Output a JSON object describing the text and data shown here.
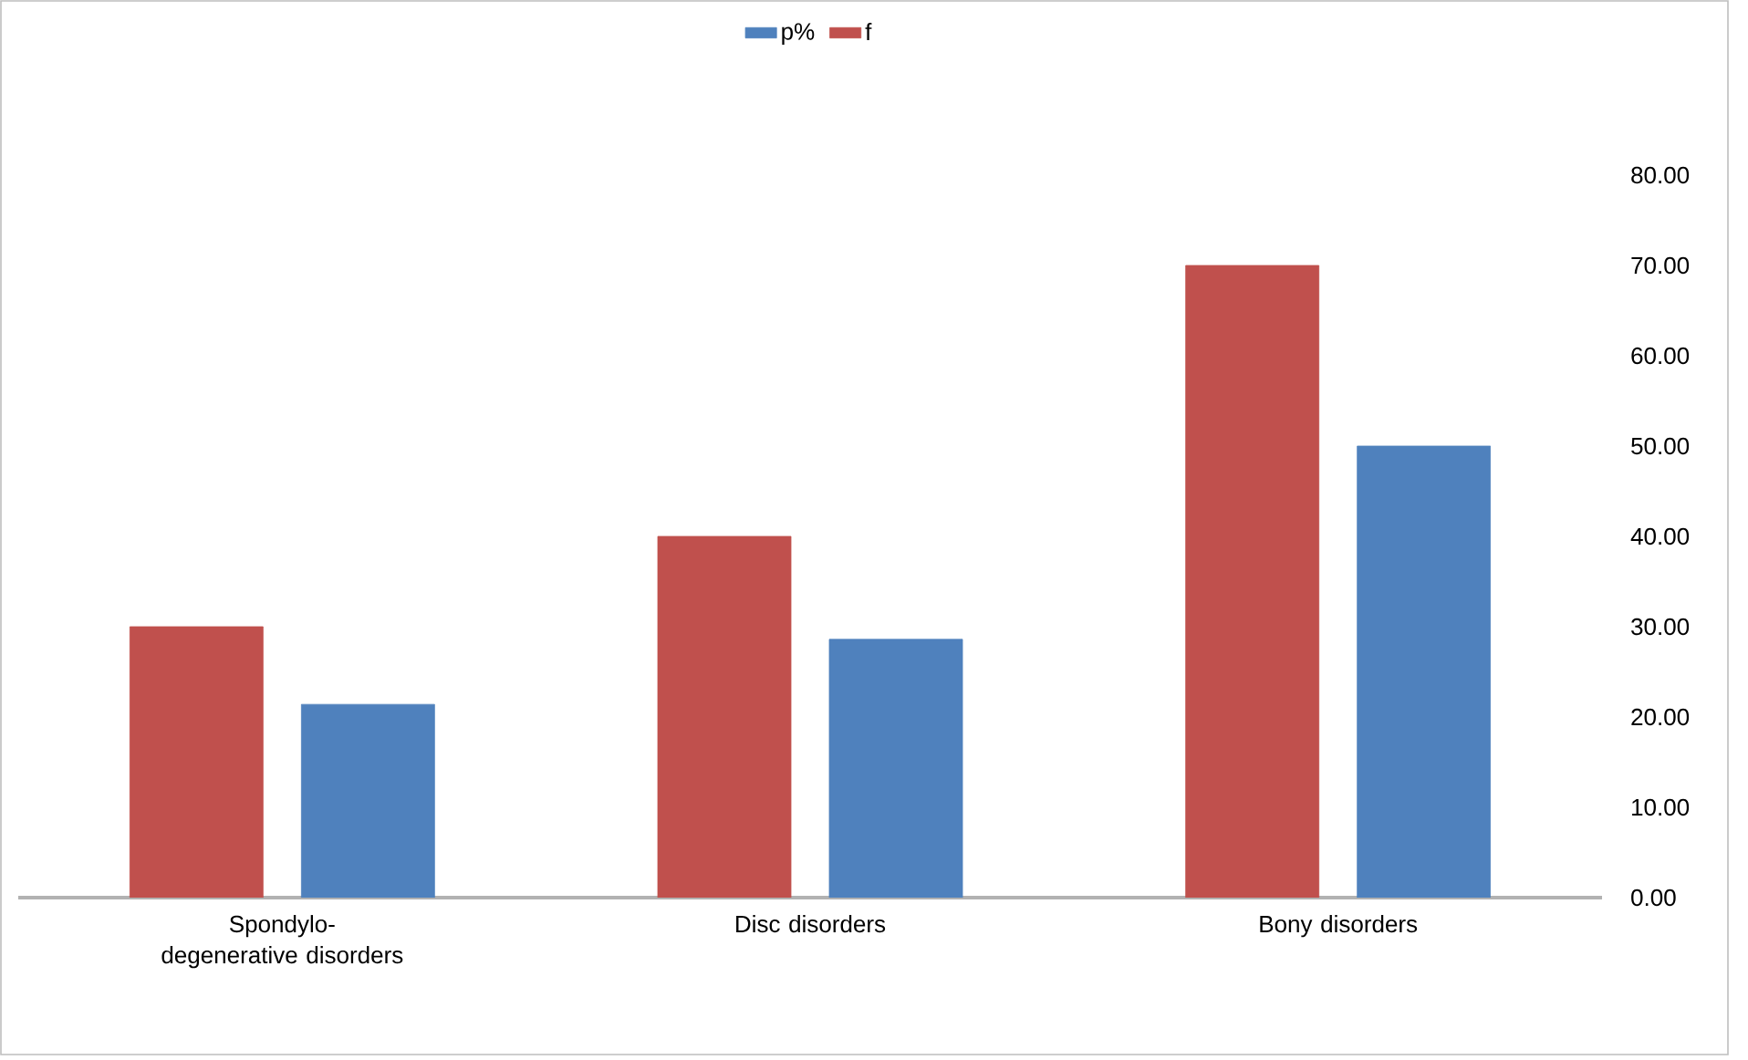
{
  "chart_data": {
    "type": "bar",
    "categories": [
      "Spondylo-degenerative disorders",
      "Disc disorders",
      "Bony disorders"
    ],
    "series": [
      {
        "name": "f",
        "color": "#c0504d",
        "values": [
          30,
          40,
          70
        ]
      },
      {
        "name": "p%",
        "color": "#4f81bd",
        "values": [
          21.4,
          28.6,
          50
        ]
      }
    ],
    "ylim": [
      0,
      80
    ],
    "yticks": [
      {
        "value": 0,
        "label": "0.00"
      },
      {
        "value": 10,
        "label": "10.00"
      },
      {
        "value": 20,
        "label": "20.00"
      },
      {
        "value": 30,
        "label": "30.00"
      },
      {
        "value": 40,
        "label": "40.00"
      },
      {
        "value": 50,
        "label": "50.00"
      },
      {
        "value": 60,
        "label": "60.00"
      },
      {
        "value": 70,
        "label": "70.00"
      },
      {
        "value": 80,
        "label": "80.00"
      }
    ],
    "legend": "top",
    "grid": false
  }
}
